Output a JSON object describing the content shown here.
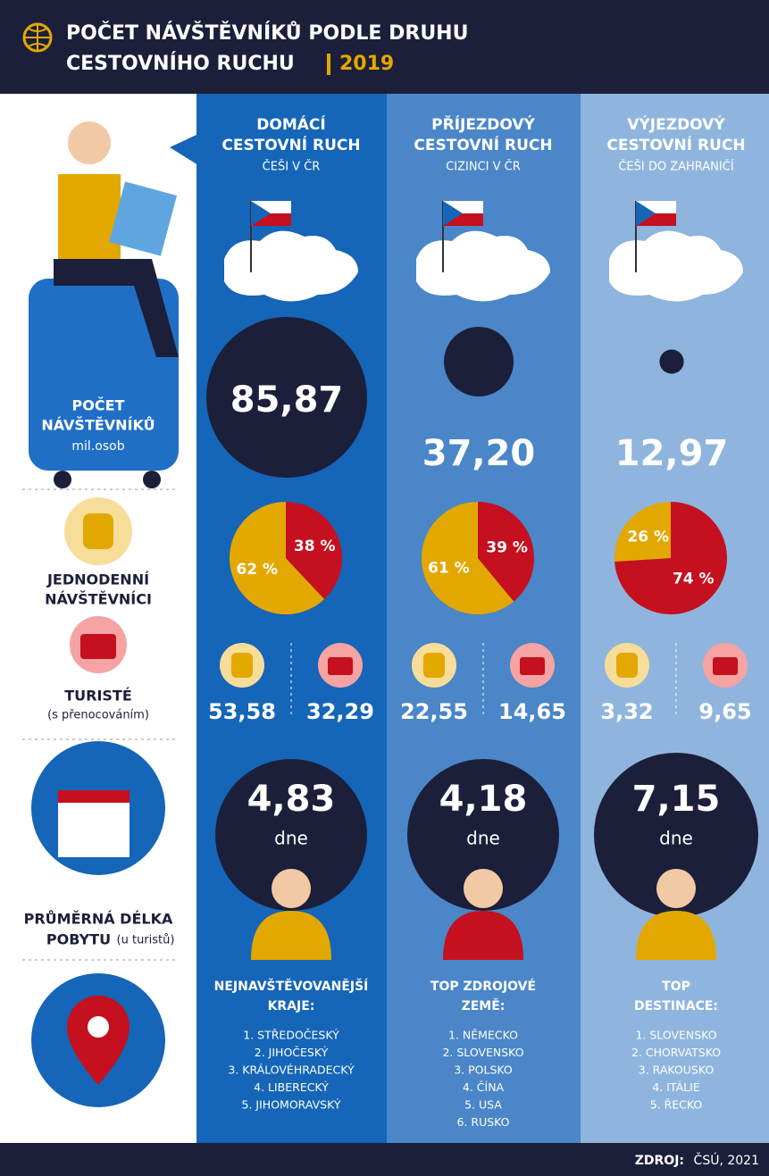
{
  "header": {
    "title_line1": "POČET NÁVŠTĚVNÍKŮ PODLE DRUHU",
    "title_line2": "CESTOVNÍHO RUCHU",
    "year": "2019"
  },
  "labels": {
    "visitors": [
      "POČET",
      "NÁVŠTĚVNÍKŮ"
    ],
    "visitors_unit": "mil.osob",
    "day": [
      "JEDNODENNÍ",
      "NÁVŠTĚVNÍCI"
    ],
    "tourists": "TURISTÉ",
    "tourists_note": "(s přenocováním)",
    "stay": [
      "PRŮMĚRNÁ DÉLKA",
      "POBYTU"
    ],
    "stay_note": "(u turistů)"
  },
  "columns": [
    {
      "title": [
        "DOMÁCÍ",
        "CESTOVNÍ RUCH"
      ],
      "subtitle": "ČEŠI V ČR",
      "visitors": {
        "value": 85.87,
        "label": "85,87"
      },
      "pie": {
        "values": [
          62,
          38
        ],
        "value_labels": [
          "62 %",
          "38 %"
        ],
        "colors": [
          "#e3a800",
          "#c4101f"
        ]
      },
      "day_count": "53,58",
      "tourist_count": "32,29",
      "stay": "4,83",
      "stay_unit": "dne",
      "list_title": [
        "NEJNAVŠTĚVOVANĚJŠÍ",
        "KRAJE:"
      ],
      "list": [
        "1. STŘEDOČESKÝ",
        "2. JIHOČESKÝ",
        "3. KRÁLOVÉHRADECKÝ",
        "4. LIBERECKÝ",
        "5. JIHOMORAVSKÝ"
      ]
    },
    {
      "title": [
        "PŘÍJEZDOVÝ",
        "CESTOVNÍ RUCH"
      ],
      "subtitle": "CIZINCI V ČR",
      "visitors": {
        "value": 37.2,
        "label": "37,20"
      },
      "pie": {
        "values": [
          61,
          39
        ],
        "value_labels": [
          "61 %",
          "39 %"
        ],
        "colors": [
          "#e3a800",
          "#c4101f"
        ]
      },
      "day_count": "22,55",
      "tourist_count": "14,65",
      "stay": "4,18",
      "stay_unit": "dne",
      "list_title": [
        "TOP ZDROJOVÉ",
        "ZEMĚ:"
      ],
      "list": [
        "1. NĚMECKO",
        "2. SLOVENSKO",
        "3. POLSKO",
        "4. ČÍNA",
        "5. USA",
        "6. RUSKO"
      ]
    },
    {
      "title": [
        "VÝJEZDOVÝ",
        "CESTOVNÍ RUCH"
      ],
      "subtitle": "ČEŠI DO ZAHRANIČÍ",
      "visitors": {
        "value": 12.97,
        "label": "12,97"
      },
      "pie": {
        "values": [
          26,
          74
        ],
        "value_labels": [
          "26 %",
          "74 %"
        ],
        "colors": [
          "#e3a800",
          "#c4101f"
        ]
      },
      "day_count": "3,32",
      "tourist_count": "9,65",
      "stay": "7,15",
      "stay_unit": "dne",
      "list_title": [
        "TOP",
        "DESTINACE:"
      ],
      "list": [
        "1. SLOVENSKO",
        "2. CHORVATSKO",
        "3. RAKOUSKO",
        "4. ITÁLIE",
        "5. ŘECKO"
      ]
    }
  ],
  "footer": {
    "label": "ZDROJ:",
    "source": "ČSÚ, 2021"
  }
}
